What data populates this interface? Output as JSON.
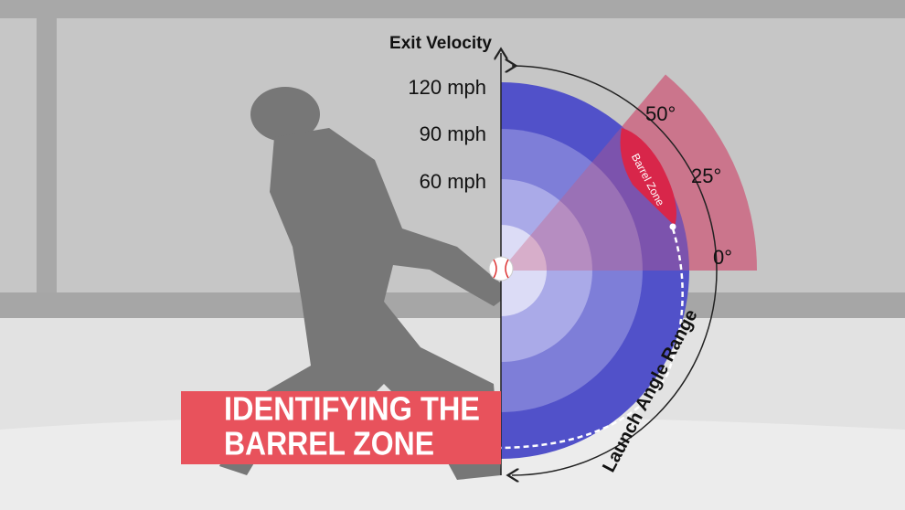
{
  "axis_title": "Exit Velocity",
  "speed_labels": [
    "120 mph",
    "90 mph",
    "60 mph"
  ],
  "angle_labels": [
    "50°",
    "25°",
    "0°"
  ],
  "zone_label": "Barrel Zone",
  "arc_label": "Launch Angle Range",
  "banner": {
    "line1": "IDENTIFYING THE",
    "line2": "BARREL ZONE"
  }
}
